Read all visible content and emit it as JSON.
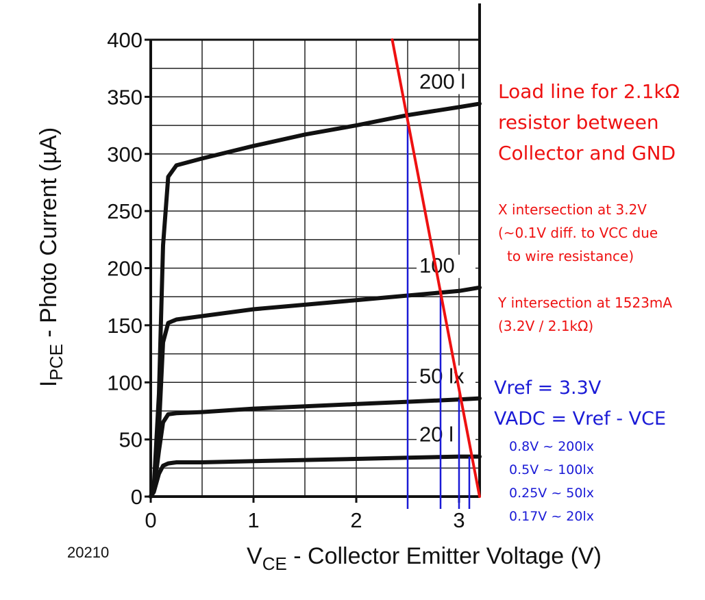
{
  "chart_data": {
    "type": "line",
    "xlabel_main": "V",
    "xlabel_sub": "CE",
    "xlabel_rest": " - Collector Emitter Voltage (V)",
    "ylabel_main": "I",
    "ylabel_sub": "PCE",
    "ylabel_rest": " - Photo Current (µA)",
    "figure_id": "20210",
    "xlim": [
      0,
      3.2
    ],
    "ylim": [
      0,
      400
    ],
    "x_ticks": [
      0,
      1,
      2,
      3
    ],
    "y_ticks": [
      0,
      50,
      100,
      150,
      200,
      250,
      300,
      350,
      400
    ],
    "grid": true,
    "series": [
      {
        "name": "200 l",
        "x": [
          0,
          0.03,
          0.08,
          0.12,
          0.17,
          0.25,
          0.5,
          1.0,
          1.5,
          2.0,
          2.5,
          3.0,
          3.2
        ],
        "y": [
          0,
          8,
          90,
          220,
          280,
          290,
          296,
          307,
          317,
          325,
          334,
          341,
          344
        ]
      },
      {
        "name": "100",
        "x": [
          0,
          0.03,
          0.08,
          0.12,
          0.17,
          0.25,
          0.5,
          1.0,
          1.5,
          2.0,
          2.5,
          3.0,
          3.2
        ],
        "y": [
          0,
          6,
          60,
          135,
          152,
          155,
          158,
          164,
          168,
          172,
          176,
          180,
          183
        ]
      },
      {
        "name": "50 lx",
        "x": [
          0,
          0.03,
          0.08,
          0.12,
          0.17,
          0.25,
          0.5,
          1.0,
          1.5,
          2.0,
          2.5,
          3.0,
          3.2
        ],
        "y": [
          0,
          5,
          40,
          65,
          72,
          73,
          74,
          77,
          79,
          81,
          83,
          85,
          86
        ]
      },
      {
        "name": "20 l",
        "x": [
          0,
          0.03,
          0.08,
          0.12,
          0.17,
          0.25,
          0.5,
          1.0,
          1.5,
          2.0,
          2.5,
          3.0,
          3.2
        ],
        "y": [
          0,
          4,
          20,
          27,
          29,
          30,
          30,
          31,
          32,
          33,
          34,
          35,
          35
        ]
      }
    ],
    "load_line": {
      "x": [
        2.35,
        3.2
      ],
      "y": [
        400,
        0
      ]
    },
    "operating_points": [
      {
        "x": 2.5,
        "y": 334
      },
      {
        "x": 2.82,
        "y": 182
      },
      {
        "x": 3.0,
        "y": 85
      },
      {
        "x": 3.1,
        "y": 35
      }
    ]
  },
  "annotations": {
    "load_line": [
      "Load line for 2.1kΩ",
      "resistor between",
      "Collector and GND"
    ],
    "x_intersection": [
      "X intersection at 3.2V",
      "(~0.1V diff. to VCC due",
      "to wire resistance)"
    ],
    "y_intersection": [
      "Y intersection at 1523mA",
      "(3.2V / 2.1kΩ)"
    ],
    "vref": "Vref = 3.3V",
    "vadc": "VADC = Vref - VCE",
    "mapping": [
      "0.8V ~ 200lx",
      "0.5V ~ 100lx",
      "0.25V ~ 50lx",
      "0.17V ~ 20lx"
    ]
  },
  "colors": {
    "curve": "#111111",
    "load_line": "#ee1111",
    "marker": "#1a1ad6",
    "grid": "#222222"
  }
}
